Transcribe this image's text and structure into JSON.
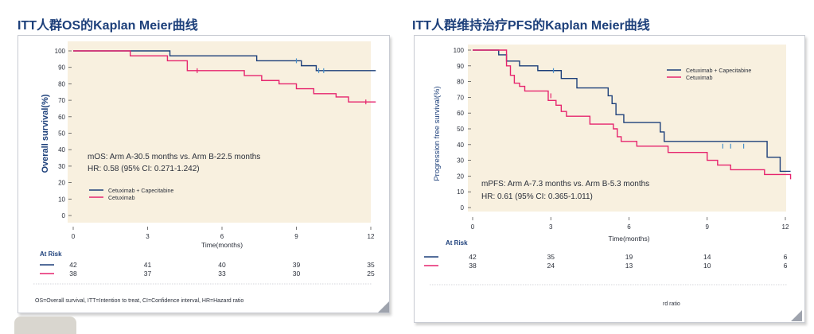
{
  "left": {
    "title": "ITT人群OS的Kaplan Meier曲线",
    "chart_data": {
      "type": "line",
      "step": true,
      "ylabel": "Overall survival(%)",
      "xlabel": "Time(months)",
      "xlim": [
        0,
        12
      ],
      "ylim": [
        0,
        100
      ],
      "xticks": [
        0,
        3,
        6,
        9,
        12
      ],
      "yticks": [
        0,
        10,
        20,
        30,
        40,
        50,
        60,
        70,
        80,
        90,
        100
      ],
      "series": [
        {
          "name": "Cetuximab + Capecitabine",
          "color": "#1c3f7a",
          "x": [
            0,
            3.9,
            7.4,
            9.2,
            9.8,
            12.2
          ],
          "y": [
            100,
            97,
            94,
            91,
            88,
            88
          ],
          "censor": [
            [
              9.0,
              94
            ],
            [
              9.9,
              88
            ],
            [
              10.1,
              88
            ]
          ]
        },
        {
          "name": "Cetuximab",
          "color": "#e6246e",
          "x": [
            0,
            2.3,
            3.8,
            4.6,
            6.9,
            7.6,
            8.3,
            9.0,
            9.7,
            10.6,
            11.1,
            12.2
          ],
          "y": [
            100,
            97,
            94,
            88,
            85,
            82,
            80,
            77,
            74,
            72,
            69,
            69
          ],
          "censor": [
            [
              5.0,
              88
            ],
            [
              11.8,
              69
            ]
          ]
        }
      ],
      "annotation": [
        "mOS: Arm A-30.5 months vs. Arm B-22.5 months",
        "HR: 0.58 (95% CI: 0.271-1.242)"
      ]
    },
    "at_risk": {
      "title": "At Risk",
      "rows": [
        {
          "color": "#1c3f7a",
          "values": [
            "42",
            "41",
            "40",
            "39",
            "35"
          ]
        },
        {
          "color": "#e6246e",
          "values": [
            "38",
            "37",
            "33",
            "30",
            "25"
          ]
        }
      ]
    },
    "footnote": "OS=Overall survival, ITT=Intention to treat, CI=Confidence interval, HR=Hazard ratio"
  },
  "right": {
    "title": "ITT人群维持治疗PFS的Kaplan Meier曲线",
    "chart_data": {
      "type": "line",
      "step": true,
      "ylabel": "Progression free survival(%)",
      "xlabel": "Time(months)",
      "xlim": [
        0,
        12
      ],
      "ylim": [
        0,
        100
      ],
      "xticks": [
        0,
        3,
        6,
        9,
        12
      ],
      "yticks": [
        0,
        10,
        20,
        30,
        40,
        50,
        60,
        70,
        80,
        90,
        100
      ],
      "series": [
        {
          "name": "Cetuximab + Capecitabine",
          "color": "#1c3f7a",
          "x": [
            0,
            1.0,
            1.3,
            1.8,
            2.5,
            3.4,
            4.0,
            5.2,
            5.35,
            5.5,
            5.8,
            7.2,
            7.35,
            11.3,
            11.8,
            12.2
          ],
          "y": [
            100,
            97,
            93,
            90,
            87,
            82,
            76,
            71,
            66,
            59,
            54,
            48,
            42,
            32,
            23,
            23
          ],
          "censor": [
            [
              3.1,
              87
            ],
            [
              9.6,
              39
            ],
            [
              9.9,
              39
            ],
            [
              10.4,
              39
            ]
          ]
        },
        {
          "name": "Cetuximab",
          "color": "#e6246e",
          "x": [
            0,
            1.3,
            1.45,
            1.6,
            1.8,
            2.0,
            2.9,
            3.2,
            3.4,
            3.6,
            4.5,
            5.4,
            5.55,
            5.7,
            6.3,
            7.5,
            9.0,
            9.4,
            9.9,
            11.2,
            12.2
          ],
          "y": [
            100,
            90,
            84,
            79,
            77,
            74,
            68,
            65,
            61,
            58,
            53,
            50,
            45,
            42,
            39,
            35,
            30,
            27,
            24,
            21,
            18
          ],
          "censor": [
            [
              3.0,
              71
            ]
          ]
        }
      ],
      "annotation": [
        "mPFS: Arm A-7.3 months vs. Arm B-5.3 months",
        "HR: 0.61 (95% CI: 0.365-1.011)"
      ]
    },
    "at_risk": {
      "title": "At Risk",
      "rows": [
        {
          "color": "#1c3f7a",
          "values": [
            "42",
            "35",
            "19",
            "14",
            "6"
          ]
        },
        {
          "color": "#e6246e",
          "values": [
            "38",
            "24",
            "13",
            "10",
            "6"
          ]
        }
      ]
    },
    "footnote": "rd ratio"
  }
}
